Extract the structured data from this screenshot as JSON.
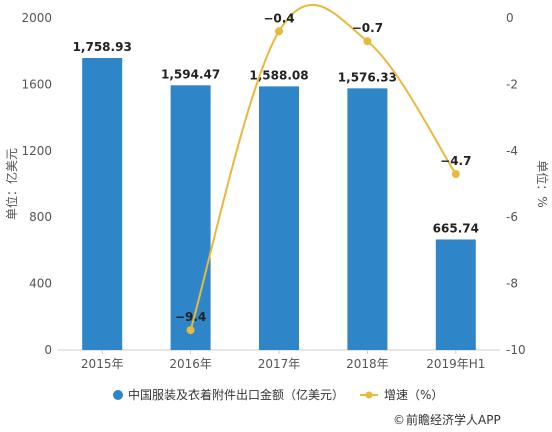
{
  "chart_data": {
    "type": "bar",
    "categories": [
      "2015年",
      "2016年",
      "2017年",
      "2018年",
      "2019年H1"
    ],
    "series": [
      {
        "name": "中国服装及衣着附件出口金额（亿美元）",
        "type": "bar",
        "axis": "left",
        "values": [
          1758.93,
          1594.47,
          1588.08,
          1576.33,
          665.74
        ],
        "labels": [
          "1,758.93",
          "1,594.47",
          "1,588.08",
          "1,576.33",
          "665.74"
        ],
        "color": "#2E86C8"
      },
      {
        "name": "增速（%）",
        "type": "line",
        "axis": "right",
        "values": [
          null,
          -9.4,
          -0.4,
          -0.7,
          -4.7
        ],
        "labels": [
          "",
          "−9.4",
          "−0.4",
          "−0.7",
          "−4.7"
        ],
        "color": "#E8B93A"
      }
    ],
    "ylabel": "单位：亿美元",
    "ylabel_right": "单位：%",
    "ylim": [
      0,
      2000
    ],
    "yticks": [
      0,
      400,
      800,
      1200,
      1600,
      2000
    ],
    "ylim_right": [
      -10,
      0
    ],
    "yticks_right": [
      -10,
      -8,
      -6,
      -4,
      -2,
      0
    ],
    "grid": false,
    "legend_position": "bottom"
  },
  "source": {
    "symbol": "©",
    "text": "前瞻经济学人APP"
  }
}
